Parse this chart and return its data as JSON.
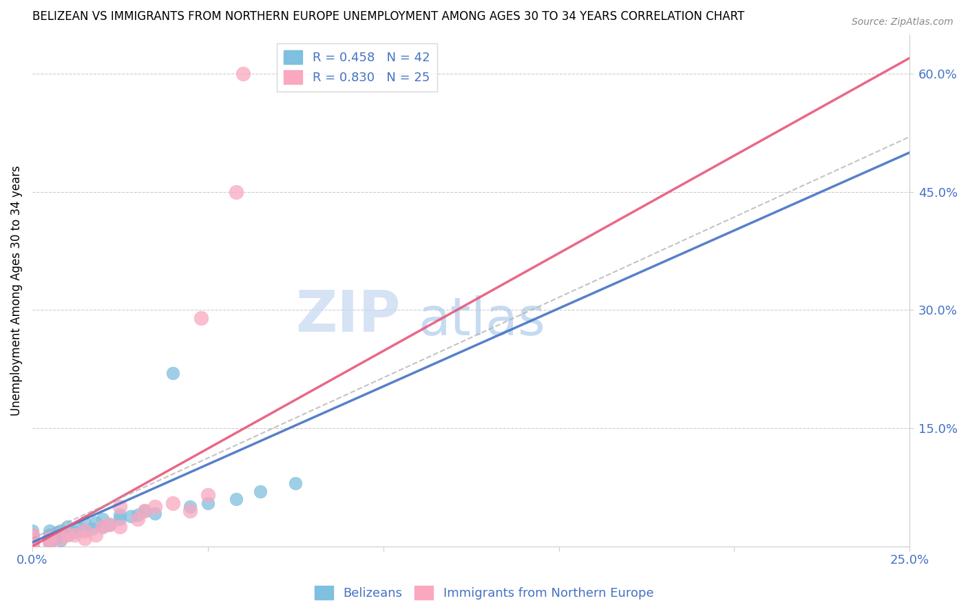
{
  "title": "BELIZEAN VS IMMIGRANTS FROM NORTHERN EUROPE UNEMPLOYMENT AMONG AGES 30 TO 34 YEARS CORRELATION CHART",
  "source": "Source: ZipAtlas.com",
  "ylabel": "Unemployment Among Ages 30 to 34 years",
  "xlabel": "",
  "xlim": [
    0,
    0.25
  ],
  "ylim": [
    0,
    0.65
  ],
  "xtick_show": [
    0.0,
    0.25
  ],
  "xtick_minor": [
    0.05,
    0.1,
    0.15,
    0.2
  ],
  "yticks_right": [
    0.15,
    0.3,
    0.45,
    0.6
  ],
  "legend_R_blue": "R = 0.458",
  "legend_N_blue": "N = 42",
  "legend_R_pink": "R = 0.830",
  "legend_N_pink": "N = 25",
  "legend_label_blue": "Belizeans",
  "legend_label_pink": "Immigrants from Northern Europe",
  "color_blue": "#7fbfdf",
  "color_pink": "#f9a8c0",
  "color_blue_line": "#4472C4",
  "color_pink_line": "#e8567a",
  "color_gray_dash": "#aaaaaa",
  "color_text": "#4472C4",
  "watermark_zip": "ZIP",
  "watermark_atlas": "atlas",
  "blue_points_x": [
    0.0,
    0.0,
    0.0,
    0.0,
    0.0,
    0.0,
    0.0,
    0.0,
    0.0,
    0.0,
    0.005,
    0.005,
    0.005,
    0.005,
    0.005,
    0.007,
    0.007,
    0.008,
    0.008,
    0.01,
    0.01,
    0.012,
    0.013,
    0.015,
    0.015,
    0.017,
    0.018,
    0.02,
    0.02,
    0.022,
    0.025,
    0.025,
    0.028,
    0.03,
    0.032,
    0.035,
    0.04,
    0.045,
    0.05,
    0.058,
    0.065,
    0.075
  ],
  "blue_points_y": [
    0.0,
    0.0,
    0.0,
    0.005,
    0.005,
    0.005,
    0.01,
    0.01,
    0.015,
    0.02,
    0.005,
    0.008,
    0.01,
    0.015,
    0.02,
    0.01,
    0.018,
    0.008,
    0.02,
    0.015,
    0.025,
    0.018,
    0.025,
    0.02,
    0.03,
    0.022,
    0.03,
    0.025,
    0.035,
    0.028,
    0.035,
    0.04,
    0.038,
    0.04,
    0.045,
    0.042,
    0.22,
    0.05,
    0.055,
    0.06,
    0.07,
    0.08
  ],
  "pink_points_x": [
    0.0,
    0.0,
    0.0,
    0.0,
    0.005,
    0.005,
    0.008,
    0.01,
    0.012,
    0.015,
    0.015,
    0.018,
    0.02,
    0.022,
    0.025,
    0.025,
    0.03,
    0.032,
    0.035,
    0.04,
    0.045,
    0.048,
    0.05,
    0.058,
    0.06
  ],
  "pink_points_y": [
    0.0,
    0.005,
    0.01,
    0.015,
    0.005,
    0.01,
    0.01,
    0.015,
    0.015,
    0.01,
    0.02,
    0.015,
    0.025,
    0.028,
    0.025,
    0.05,
    0.035,
    0.045,
    0.05,
    0.055,
    0.045,
    0.29,
    0.065,
    0.45,
    0.6
  ],
  "blue_trend_x": [
    0.0,
    0.25
  ],
  "blue_trend_y": [
    0.005,
    0.5
  ],
  "pink_trend_x": [
    0.0,
    0.25
  ],
  "pink_trend_y": [
    0.0,
    0.62
  ],
  "gray_trend_x": [
    0.0,
    0.25
  ],
  "gray_trend_y": [
    0.01,
    0.52
  ]
}
